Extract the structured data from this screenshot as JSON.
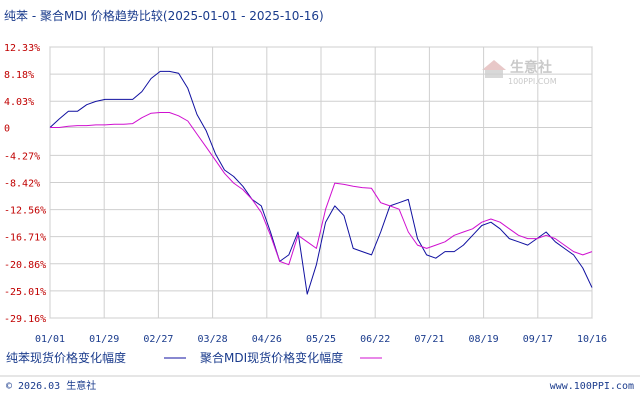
{
  "chart_data": {
    "type": "line",
    "title": "纯苯 - 聚合MDI 价格趋势比较(2025-01-01 - 2025-10-16)",
    "y_ticks": [
      "12.33%",
      "8.18%",
      "4.03%",
      "0",
      "-4.27%",
      "-8.42%",
      "-12.56%",
      "-16.71%",
      "-20.86%",
      "-25.01%",
      "-29.16%"
    ],
    "y_tick_values": [
      12.33,
      8.18,
      4.03,
      0,
      -4.27,
      -8.42,
      -12.56,
      -16.71,
      -20.86,
      -25.01,
      -29.16
    ],
    "ylim": [
      -29.16,
      12.33
    ],
    "x_ticks": [
      "01/01",
      "01/29",
      "02/27",
      "03/28",
      "04/26",
      "05/25",
      "06/22",
      "07/21",
      "08/19",
      "09/17",
      "10/16"
    ],
    "grid": true,
    "legend_position": "bottom-left",
    "series": [
      {
        "name": "纯苯现货价格变化幅度",
        "color": "#1010a0",
        "values": [
          0,
          1.3,
          2.5,
          2.5,
          3.5,
          4.0,
          4.3,
          4.3,
          4.3,
          4.3,
          5.5,
          7.5,
          8.6,
          8.6,
          8.3,
          6.0,
          2.0,
          -0.5,
          -4.0,
          -6.5,
          -7.5,
          -9.0,
          -11.0,
          -12.0,
          -16.0,
          -20.5,
          -19.5,
          -16.0,
          -25.5,
          -21.0,
          -14.5,
          -12.0,
          -13.5,
          -18.5,
          -19.0,
          -19.5,
          -16.0,
          -12.0,
          -11.5,
          -11.0,
          -17.0,
          -19.5,
          -20.0,
          -19.0,
          -19.0,
          -18.0,
          -16.5,
          -15.0,
          -14.5,
          -15.5,
          -17.0,
          -17.5,
          -18.0,
          -17.0,
          -16.0,
          -17.5,
          -18.5,
          -19.5,
          -21.5,
          -24.5
        ]
      },
      {
        "name": "聚合MDI现货价格变化幅度",
        "color": "#d010d0",
        "values": [
          0,
          0.0,
          0.2,
          0.3,
          0.3,
          0.4,
          0.4,
          0.5,
          0.5,
          0.6,
          1.5,
          2.2,
          2.3,
          2.3,
          1.8,
          1.0,
          -1.0,
          -3.0,
          -5.0,
          -7.0,
          -8.5,
          -9.5,
          -11.0,
          -13.0,
          -16.5,
          -20.5,
          -21.0,
          -16.5,
          -17.5,
          -18.5,
          -12.5,
          -8.5,
          -8.7,
          -9.0,
          -9.2,
          -9.3,
          -11.5,
          -12.0,
          -12.5,
          -16.0,
          -18.0,
          -18.5,
          -18.0,
          -17.5,
          -16.5,
          -16.0,
          -15.5,
          -14.5,
          -14.0,
          -14.5,
          -15.5,
          -16.5,
          -17.0,
          -17.0,
          -16.5,
          -17.0,
          -18.0,
          -19.0,
          -19.5,
          -19.0
        ]
      }
    ]
  },
  "legend": {
    "item1_label": "纯苯现货价格变化幅度",
    "item2_label": "聚合MDI现货价格变化幅度"
  },
  "footer": {
    "copyright": "© 2026.03 生意社",
    "url": "www.100PPI.com"
  },
  "watermark": {
    "name": "生意社",
    "url": "100PPI.COM"
  },
  "colors": {
    "axis_text_y": "#c00000",
    "axis_text_x": "#1a3b8c",
    "series1": "#1010a0",
    "series2": "#d010d0",
    "grid": "#cfcfcf"
  }
}
